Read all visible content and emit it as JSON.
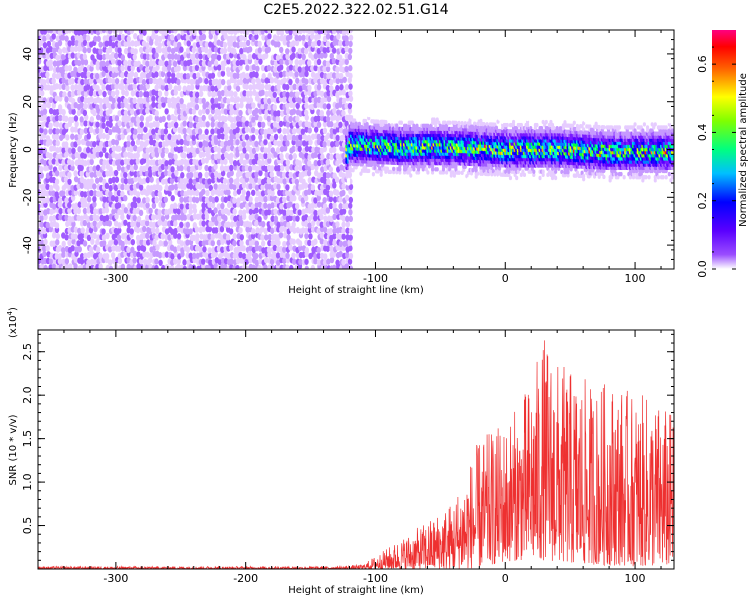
{
  "title": "C2E5.2022.322.02.51.G14",
  "chart_data": [
    {
      "type": "heatmap",
      "xlabel": "Height of straight line (km)",
      "ylabel": "Frequency (Hz)",
      "xlim": [
        -360,
        130
      ],
      "ylim": [
        -50,
        50
      ],
      "x_ticks": [
        -300,
        -200,
        -100,
        0,
        100
      ],
      "y_ticks": [
        -40,
        -20,
        0,
        20,
        40
      ],
      "x_tick_labels": [
        "-300",
        "-200",
        "-100",
        "0",
        "100"
      ],
      "y_tick_labels": [
        "-40",
        "-20",
        "0",
        "20",
        "40"
      ],
      "noise_region_x": [
        -360,
        -120
      ],
      "signal_region_x": [
        -122,
        130
      ],
      "signal_center_freq": [
        [
          -120,
          2
        ],
        [
          -80,
          1
        ],
        [
          -40,
          1
        ],
        [
          0,
          0
        ],
        [
          40,
          0
        ],
        [
          80,
          -1
        ],
        [
          130,
          -1
        ]
      ],
      "signal_halfwidth_hz": 6,
      "colorbar": {
        "label": "Normalized spectral amplitude",
        "ticks": [
          0.0,
          0.2,
          0.4,
          0.6
        ],
        "tick_labels": [
          "0.0",
          "0.2",
          "0.4",
          "0.6"
        ],
        "range": [
          0,
          0.7
        ],
        "colors": [
          "#ffffff",
          "#8000ff",
          "#0000ff",
          "#00ffff",
          "#00ff00",
          "#ffff00",
          "#ff0000",
          "#ff0080"
        ]
      }
    },
    {
      "type": "line",
      "xlabel": "Height of straight line (km)",
      "ylabel": "SNR (10 * v/v)",
      "y_multiplier_label": "(x10",
      "y_multiplier_exp": "4",
      "y_multiplier_close": ")",
      "xlim": [
        -360,
        130
      ],
      "ylim": [
        0,
        2.75
      ],
      "x_ticks": [
        -300,
        -200,
        -100,
        0,
        100
      ],
      "y_ticks": [
        0.5,
        1.0,
        1.5,
        2.0,
        2.5
      ],
      "x_tick_labels": [
        "-300",
        "-200",
        "-100",
        "0",
        "100"
      ],
      "y_tick_labels": [
        "0.5",
        "1.0",
        "1.5",
        "2.0",
        "2.5"
      ],
      "series": [
        {
          "color": "#ee3030",
          "envelope": {
            "x": [
              -360,
              -130,
              -110,
              -100,
              -80,
              -60,
              -40,
              -30,
              -20,
              -10,
              0,
              10,
              20,
              30,
              40,
              50,
              60,
              70,
              80,
              90,
              100,
              110,
              120,
              130
            ],
            "lower": [
              0.0,
              0.0,
              0.0,
              0.0,
              0.0,
              0.0,
              0.0,
              0.0,
              0.02,
              0.05,
              0.08,
              0.1,
              0.1,
              0.1,
              0.08,
              0.06,
              0.05,
              0.05,
              0.04,
              0.04,
              0.03,
              0.03,
              0.03,
              0.03
            ],
            "upper": [
              0.03,
              0.03,
              0.05,
              0.15,
              0.35,
              0.55,
              0.8,
              1.15,
              1.5,
              1.6,
              1.7,
              1.9,
              2.2,
              2.7,
              2.4,
              2.3,
              2.2,
              2.1,
              2.2,
              2.1,
              2.0,
              2.0,
              1.9,
              1.8
            ]
          }
        }
      ]
    }
  ]
}
